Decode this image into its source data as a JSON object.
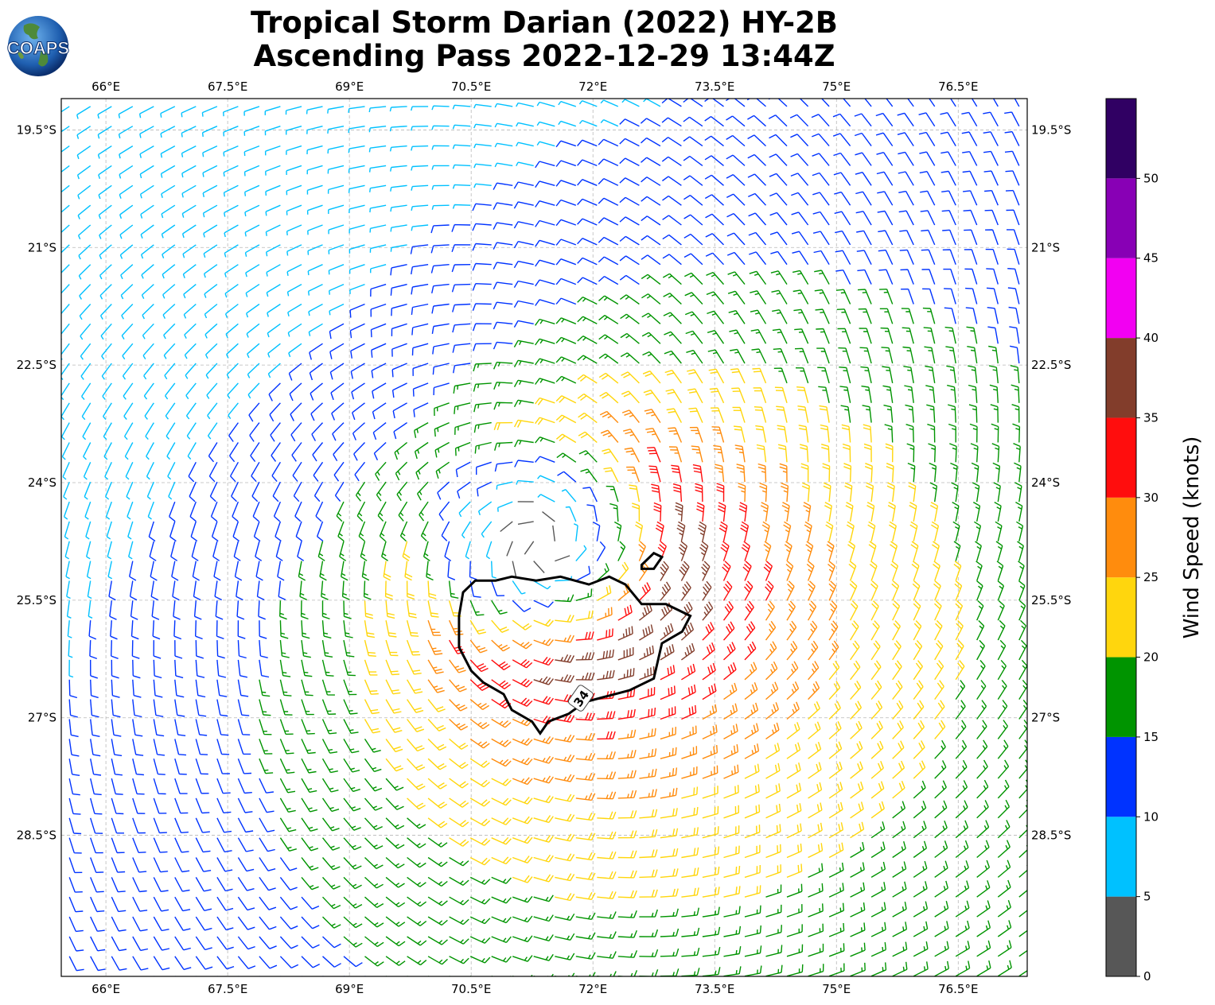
{
  "title": {
    "line1": "Tropical Storm Darian (2022) HY-2B",
    "line2": "Ascending Pass 2022-12-29 13:44Z"
  },
  "logo": {
    "text": "COAPS",
    "icon": "globe-icon"
  },
  "map": {
    "lon_range": [
      65.45,
      77.35
    ],
    "lat_range": [
      -30.3,
      -19.1
    ],
    "lon_ticks": [
      {
        "value": 66.0,
        "label": "66°E"
      },
      {
        "value": 67.5,
        "label": "67.5°E"
      },
      {
        "value": 69.0,
        "label": "69°E"
      },
      {
        "value": 70.5,
        "label": "70.5°E"
      },
      {
        "value": 72.0,
        "label": "72°E"
      },
      {
        "value": 73.5,
        "label": "73.5°E"
      },
      {
        "value": 75.0,
        "label": "75°E"
      },
      {
        "value": 76.5,
        "label": "76.5°E"
      }
    ],
    "lat_ticks": [
      {
        "value": -19.5,
        "label": "19.5°S"
      },
      {
        "value": -21.0,
        "label": "21°S"
      },
      {
        "value": -22.5,
        "label": "22.5°S"
      },
      {
        "value": -24.0,
        "label": "24°S"
      },
      {
        "value": -25.5,
        "label": "25.5°S"
      },
      {
        "value": -27.0,
        "label": "27°S"
      },
      {
        "value": -28.5,
        "label": "28.5°S"
      }
    ],
    "storm_center": {
      "lon": 71.4,
      "lat": -24.8
    },
    "contour": {
      "label": "34",
      "level_knots": 34,
      "main": [
        [
          70.4,
          -25.4
        ],
        [
          70.55,
          -25.25
        ],
        [
          70.8,
          -25.25
        ],
        [
          71.0,
          -25.2
        ],
        [
          71.3,
          -25.25
        ],
        [
          71.6,
          -25.2
        ],
        [
          71.95,
          -25.3
        ],
        [
          72.2,
          -25.2
        ],
        [
          72.4,
          -25.3
        ],
        [
          72.6,
          -25.55
        ],
        [
          72.9,
          -25.55
        ],
        [
          73.2,
          -25.7
        ],
        [
          73.1,
          -25.9
        ],
        [
          72.85,
          -26.05
        ],
        [
          72.75,
          -26.5
        ],
        [
          72.45,
          -26.65
        ],
        [
          71.9,
          -26.8
        ],
        [
          71.7,
          -26.95
        ],
        [
          71.45,
          -27.05
        ],
        [
          71.35,
          -27.2
        ],
        [
          71.25,
          -27.05
        ],
        [
          71.0,
          -26.9
        ],
        [
          70.9,
          -26.7
        ],
        [
          70.65,
          -26.55
        ],
        [
          70.5,
          -26.4
        ],
        [
          70.35,
          -26.1
        ],
        [
          70.35,
          -25.7
        ],
        [
          70.4,
          -25.4
        ]
      ],
      "small": [
        [
          72.6,
          -25.05
        ],
        [
          72.75,
          -24.9
        ],
        [
          72.85,
          -24.95
        ],
        [
          72.75,
          -25.1
        ],
        [
          72.6,
          -25.1
        ],
        [
          72.6,
          -25.05
        ]
      ]
    }
  },
  "colorbar": {
    "title": "Wind Speed (knots)",
    "bins": [
      {
        "min": 0,
        "max": 5,
        "color": "#575757"
      },
      {
        "min": 5,
        "max": 10,
        "color": "#00c1ff"
      },
      {
        "min": 10,
        "max": 15,
        "color": "#0033ff"
      },
      {
        "min": 15,
        "max": 20,
        "color": "#009400"
      },
      {
        "min": 20,
        "max": 25,
        "color": "#ffd60d"
      },
      {
        "min": 25,
        "max": 30,
        "color": "#ff8c0d"
      },
      {
        "min": 30,
        "max": 35,
        "color": "#ff0d0d"
      },
      {
        "min": 35,
        "max": 40,
        "color": "#823d2b"
      },
      {
        "min": 40,
        "max": 45,
        "color": "#f200f2"
      },
      {
        "min": 45,
        "max": 50,
        "color": "#8800b5"
      },
      {
        "min": 50,
        "max": 55,
        "color": "#300063"
      }
    ],
    "tick_labels": [
      "0",
      "5",
      "10",
      "15",
      "20",
      "25",
      "30",
      "35",
      "40",
      "45",
      "50"
    ]
  },
  "barb_colors": {
    "calm": "#575757",
    "low": "#00c1ff",
    "blue": "#0033ff",
    "green": "#009400",
    "yellow": "#ffd60d",
    "orange": "#ff8c0d",
    "red": "#ff0d0d",
    "brown": "#823d2b"
  }
}
